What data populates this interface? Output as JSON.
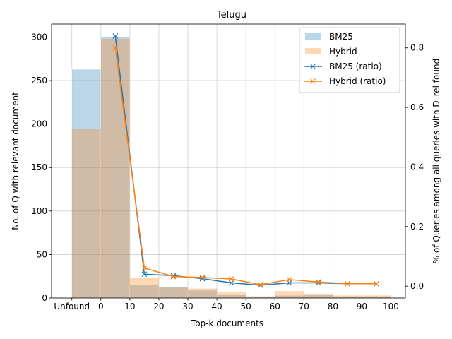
{
  "chart_data": {
    "type": "bar",
    "title": "Telugu",
    "xlabel": "Top-k documents",
    "ylabel": "No. of Q with relevant document",
    "y2label": "% of Queries among all queries with D_rel found",
    "x_tick_labels": [
      "Unfound",
      "0",
      "10",
      "20",
      "30",
      "40",
      "50",
      "60",
      "70",
      "80",
      "90",
      "100"
    ],
    "x_tick_values": [
      -10,
      0,
      10,
      20,
      30,
      40,
      50,
      60,
      70,
      80,
      90,
      100
    ],
    "xlim": [
      -17,
      105
    ],
    "ylim": [
      0,
      315
    ],
    "y_ticks": [
      0,
      50,
      100,
      150,
      200,
      250,
      300
    ],
    "y2lim": [
      -0.04,
      0.88
    ],
    "y2_ticks": [
      0.0,
      0.2,
      0.4,
      0.6,
      0.8
    ],
    "y2_tick_labels": [
      "0.0",
      "0.2",
      "0.4",
      "0.6",
      "0.8"
    ],
    "grid": true,
    "legend_position": "top-right",
    "bins": [
      [
        -10,
        0
      ],
      [
        0,
        10
      ],
      [
        10,
        20
      ],
      [
        20,
        30
      ],
      [
        30,
        40
      ],
      [
        40,
        50
      ],
      [
        50,
        60
      ],
      [
        60,
        70
      ],
      [
        70,
        80
      ],
      [
        80,
        90
      ],
      [
        90,
        100
      ]
    ],
    "series": [
      {
        "name": "BM25",
        "kind": "bar",
        "color": "#1f77b4",
        "values": [
          263,
          300,
          15,
          13,
          9,
          4,
          1,
          3,
          4,
          2,
          2
        ]
      },
      {
        "name": "Hybrid",
        "kind": "bar",
        "color": "#ff7f0e",
        "values": [
          194,
          298,
          23,
          12,
          11,
          7,
          2,
          8,
          5,
          3,
          3
        ]
      },
      {
        "name": "BM25 (ratio)",
        "kind": "line",
        "marker": "x",
        "color": "#1f77b4",
        "x": [
          5,
          15,
          25,
          35,
          45,
          55,
          65,
          75,
          85,
          95
        ],
        "values": [
          0.84,
          0.04,
          0.035,
          0.025,
          0.011,
          0.003,
          0.011,
          0.011,
          0.008,
          0.008
        ]
      },
      {
        "name": "Hybrid (ratio)",
        "kind": "line",
        "marker": "x",
        "color": "#ff7f0e",
        "x": [
          5,
          15,
          25,
          35,
          45,
          55,
          65,
          75,
          85,
          95
        ],
        "values": [
          0.8,
          0.061,
          0.032,
          0.029,
          0.024,
          0.005,
          0.022,
          0.014,
          0.008,
          0.008
        ]
      }
    ]
  }
}
